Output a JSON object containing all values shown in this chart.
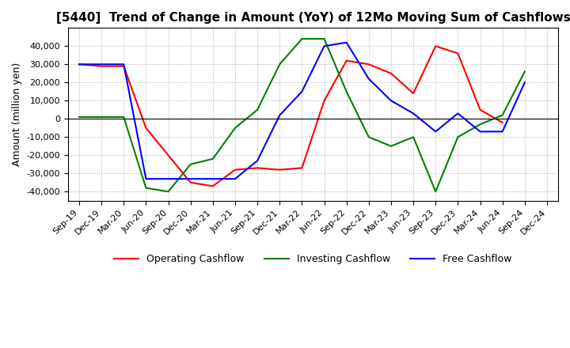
{
  "title": "[5440]  Trend of Change in Amount (YoY) of 12Mo Moving Sum of Cashflows",
  "ylabel": "Amount (million yen)",
  "x_labels": [
    "Sep-19",
    "Dec-19",
    "Mar-20",
    "Jun-20",
    "Sep-20",
    "Dec-20",
    "Mar-21",
    "Jun-21",
    "Sep-21",
    "Dec-21",
    "Mar-22",
    "Jun-22",
    "Sep-22",
    "Dec-22",
    "Mar-23",
    "Jun-23",
    "Sep-23",
    "Dec-23",
    "Mar-24",
    "Jun-24",
    "Sep-24",
    "Dec-24"
  ],
  "operating": [
    30000,
    29000,
    29000,
    -5000,
    -20000,
    -35000,
    -37000,
    -28000,
    -27000,
    -28000,
    -27000,
    10000,
    32000,
    30000,
    25000,
    14000,
    40000,
    36000,
    5000,
    -2000,
    null,
    null
  ],
  "investing": [
    1000,
    1000,
    1000,
    -38000,
    -40000,
    -25000,
    -22000,
    -5000,
    5000,
    30000,
    44000,
    44000,
    15000,
    -10000,
    -15000,
    -10000,
    -40000,
    -10000,
    -3000,
    2000,
    26000,
    null
  ],
  "free": [
    30000,
    30000,
    30000,
    -33000,
    -33000,
    -33000,
    -33000,
    -33000,
    -23000,
    2000,
    15000,
    40000,
    42000,
    22000,
    10000,
    3000,
    -7000,
    3000,
    -7000,
    -7000,
    20000,
    null
  ],
  "operating_color": "#ff0000",
  "investing_color": "#008000",
  "free_color": "#0000ff",
  "ylim": [
    -45000,
    50000
  ],
  "yticks": [
    -40000,
    -30000,
    -20000,
    -10000,
    0,
    10000,
    20000,
    30000,
    40000
  ],
  "grid_color": "#aaaaaa",
  "background_color": "#ffffff",
  "title_fontsize": 11,
  "axis_fontsize": 9,
  "tick_fontsize": 8
}
